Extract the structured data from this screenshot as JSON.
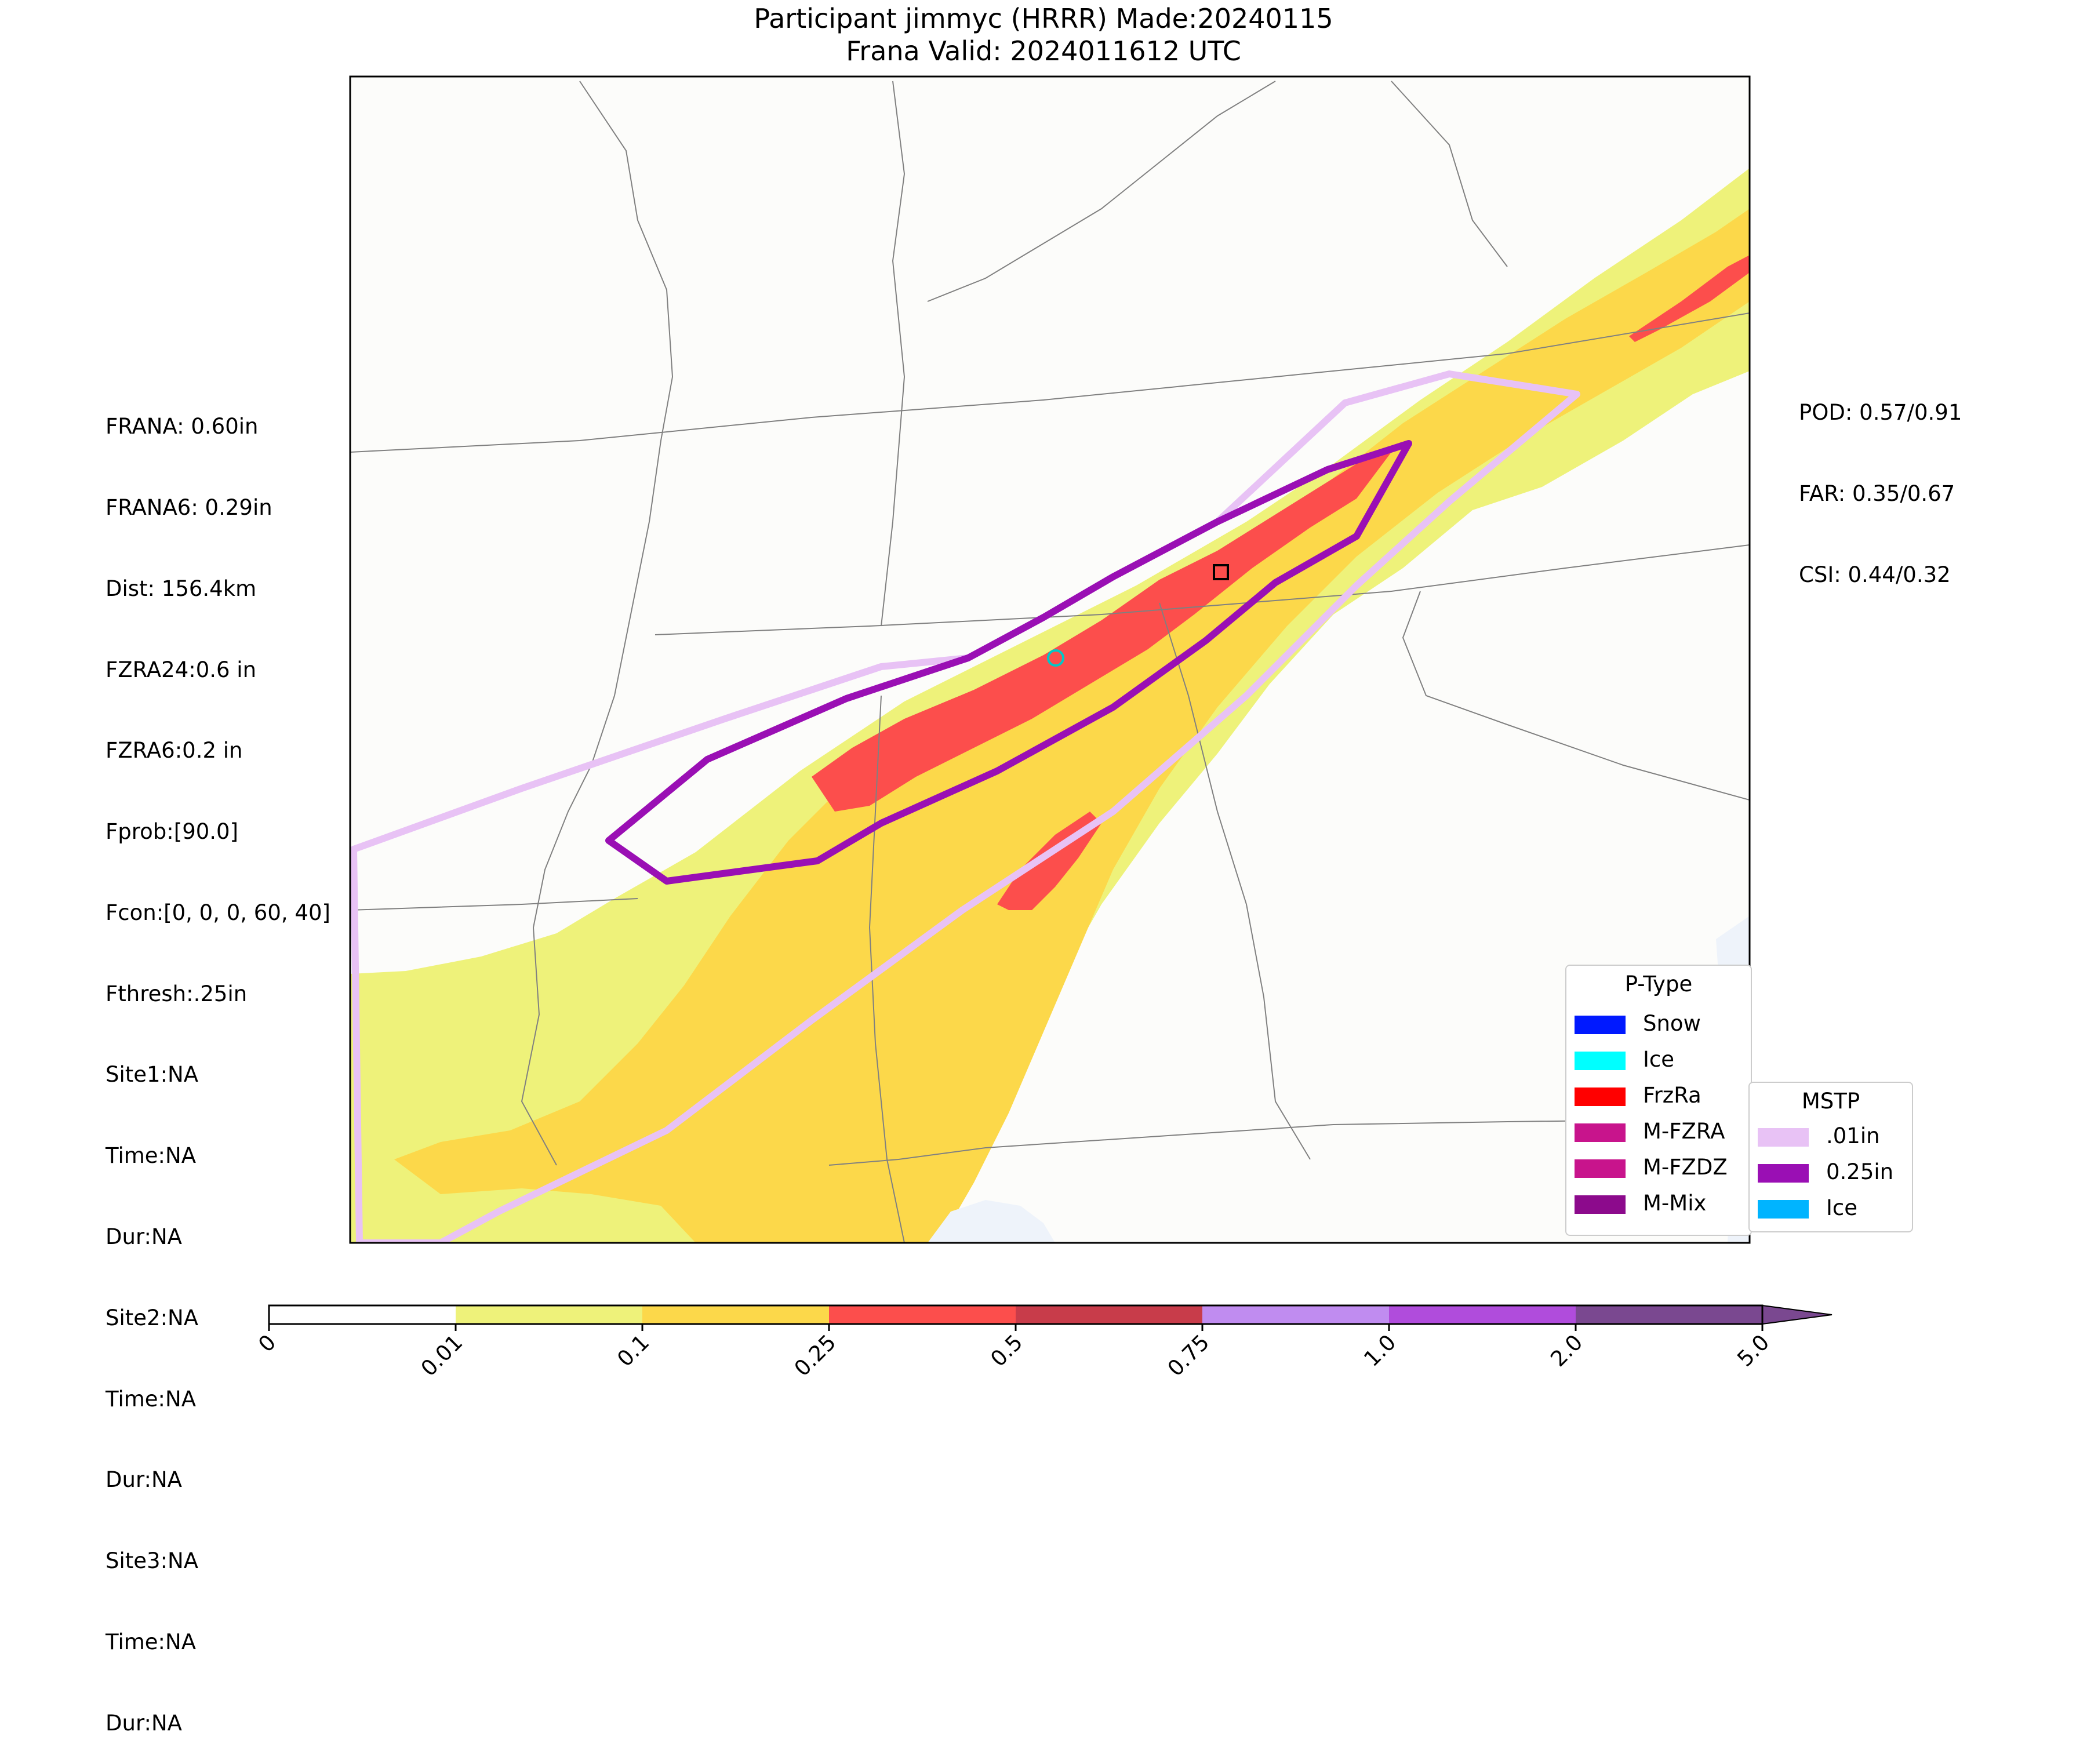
{
  "title_line1": "Participant jimmyc (HRRR) Made:20240115",
  "title_line2": "Frana Valid: 2024011612 UTC",
  "stats_left": [
    "FRANA: 0.60in",
    "FRANA6: 0.29in",
    "Dist: 156.4km",
    "FZRA24:0.6 in",
    "FZRA6:0.2 in",
    "Fprob:[90.0]",
    "Fcon:[0, 0, 0, 60, 40]",
    "Fthresh:.25in",
    "Site1:NA",
    "Time:NA",
    "Dur:NA",
    "Site2:NA",
    "Time:NA",
    "Dur:NA",
    "Site3:NA",
    "Time:NA",
    "Dur:NA"
  ],
  "stats_right": [
    "POD: 0.57/0.91",
    "FAR: 0.35/0.67",
    "CSI: 0.44/0.32"
  ],
  "ptype_legend": {
    "title": "P-Type",
    "items": [
      {
        "label": "Snow",
        "color": "#0019ff"
      },
      {
        "label": "Ice",
        "color": "#00ffff"
      },
      {
        "label": "FrzRa",
        "color": "#ff0000"
      },
      {
        "label": "M-FZRA",
        "color": "#c8148c"
      },
      {
        "label": "M-FZDZ",
        "color": "#c8148c"
      },
      {
        "label": "M-Mix",
        "color": "#8c0a8c"
      }
    ]
  },
  "mstp_legend": {
    "title": "MSTP",
    "items": [
      {
        "label": ".01in",
        "color": "#e8c2f5"
      },
      {
        "label": "0.25in",
        "color": "#9a0fb4"
      },
      {
        "label": "Ice",
        "color": "#00b4ff"
      }
    ]
  },
  "colorbar": {
    "ticks": [
      "0",
      "0.01",
      "0.1",
      "0.25",
      "0.5",
      "0.75",
      "1.0",
      "2.0",
      "5.0"
    ],
    "colors": [
      "#ffffff",
      "#eef27a",
      "#fcd84a",
      "#fc4e4c",
      "#c83c4a",
      "#c08cf0",
      "#b04cdc",
      "#7a4890"
    ]
  },
  "precip_colors": {
    "light": "#eef27a",
    "moderate": "#fcd84a",
    "heavy": "#fc4e4c",
    "land": "#fcfcfa",
    "water": "#eef3fa",
    "border": "#606060"
  },
  "polygon_colors": {
    "outer": "#e8c2f5",
    "inner": "#9a0fb4"
  }
}
